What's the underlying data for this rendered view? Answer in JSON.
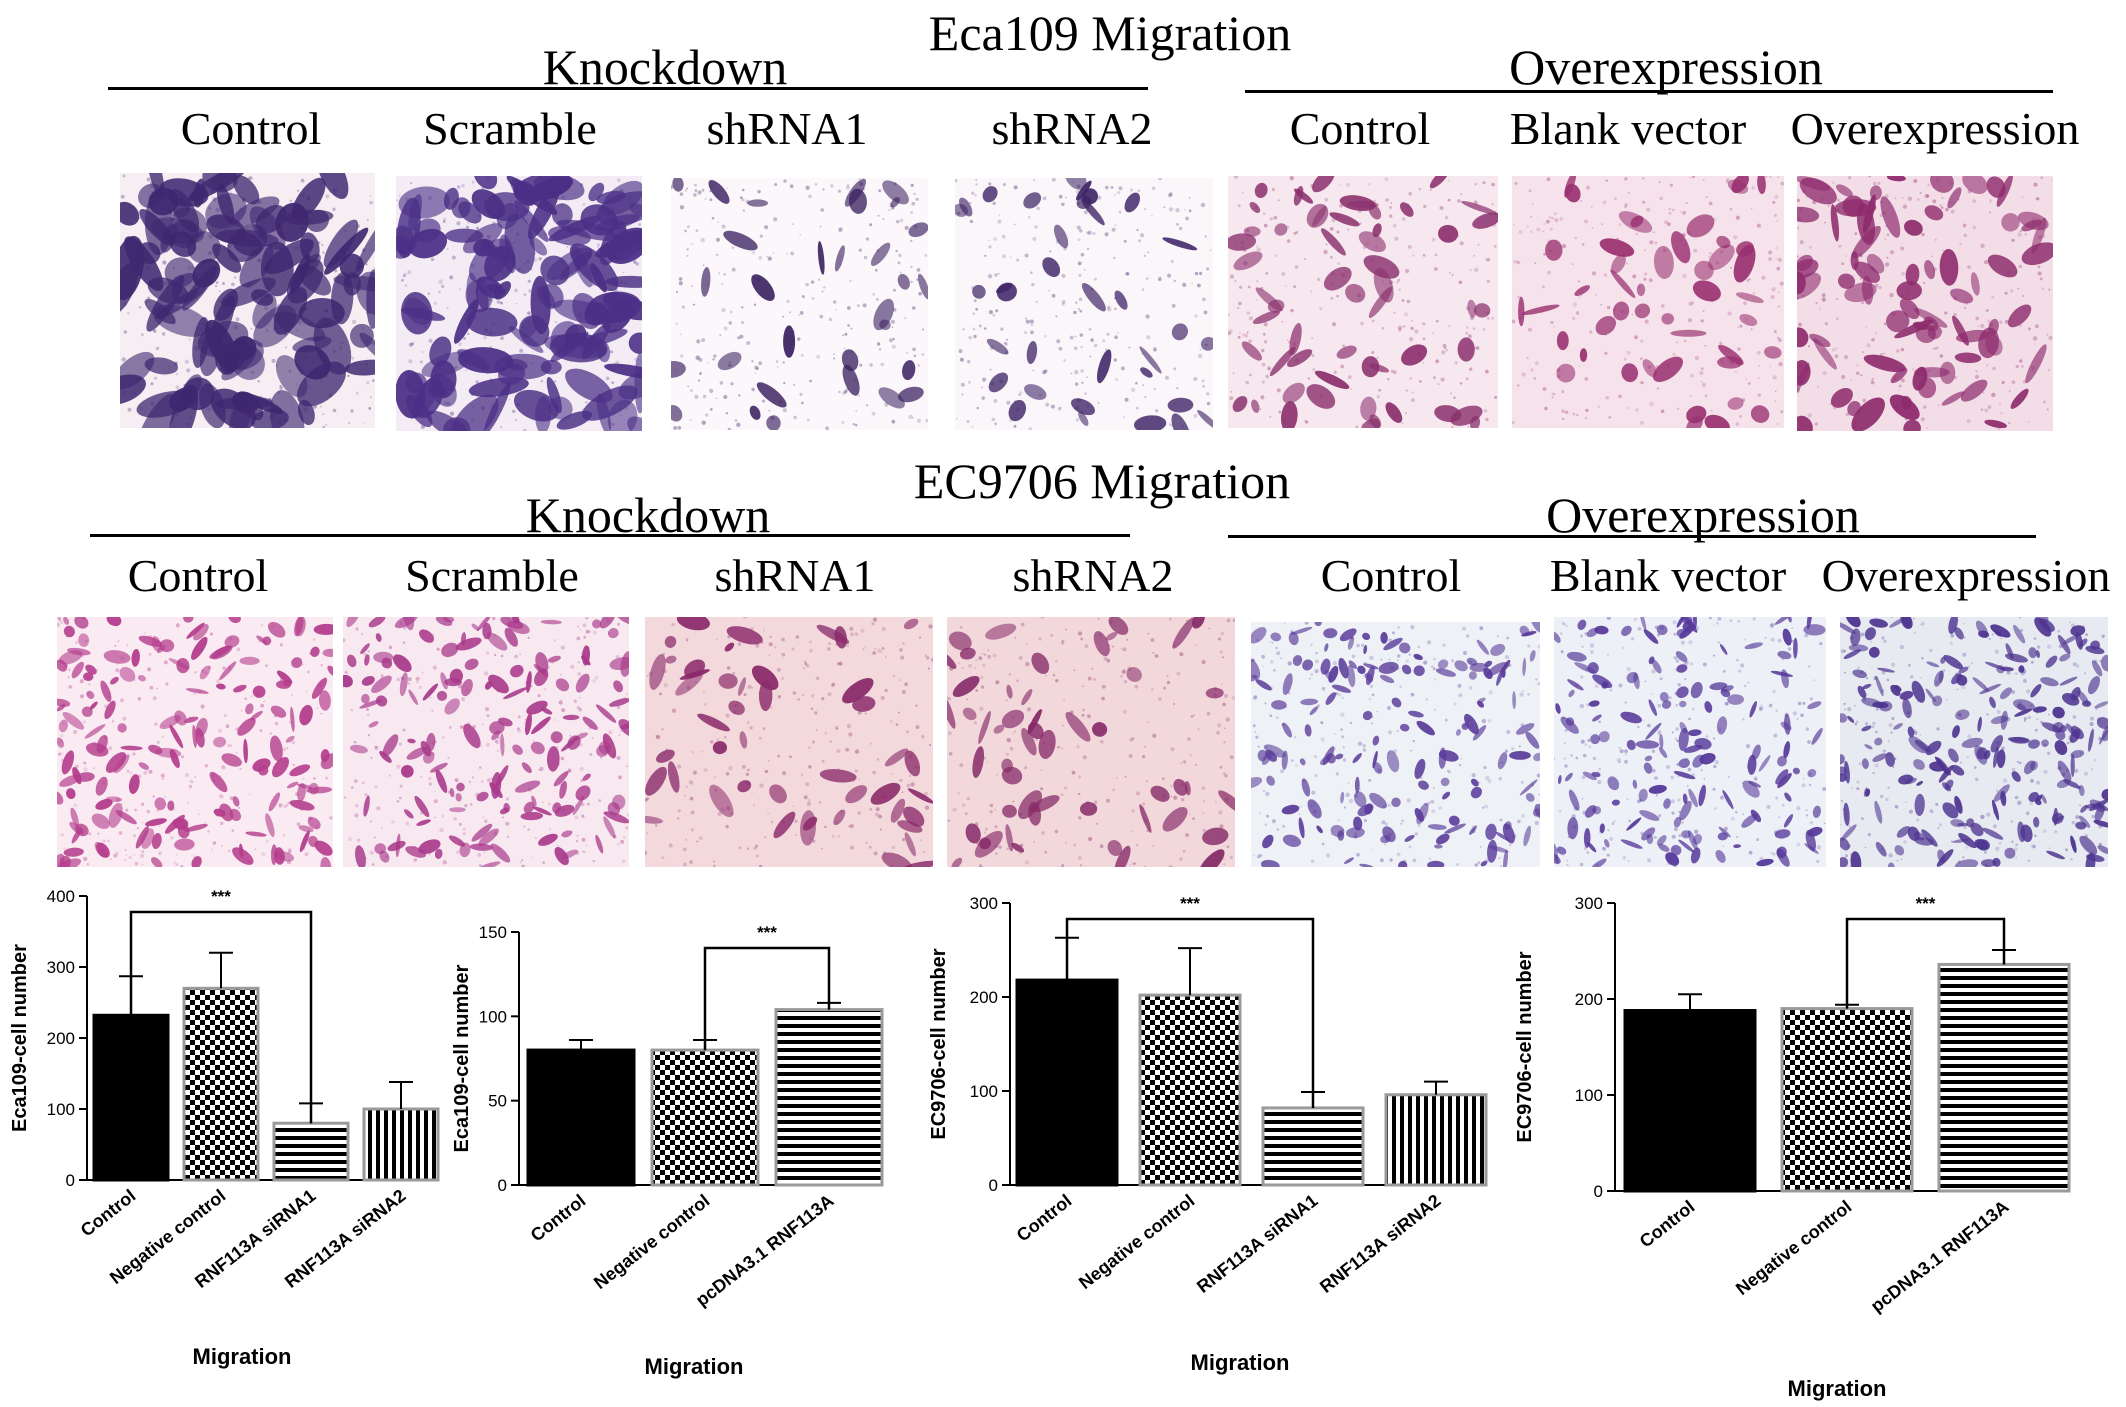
{
  "sections": [
    {
      "title": "Eca109 Migration",
      "groups": [
        {
          "label": "Knockdown",
          "conditions": [
            "Control",
            "Scramble",
            "shRNA1",
            "shRNA2"
          ]
        },
        {
          "label": "Overexpression",
          "conditions": [
            "Control",
            "Blank vector",
            "Overexpression"
          ]
        }
      ]
    },
    {
      "title": "EC9706 Migration",
      "groups": [
        {
          "label": "Knockdown",
          "conditions": [
            "Control",
            "Scramble",
            "shRNA1",
            "shRNA2"
          ]
        },
        {
          "label": "Overexpression",
          "conditions": [
            "Control",
            "Blank vector",
            "Overexpression"
          ]
        }
      ]
    }
  ],
  "colors": {
    "stain_purple": "#4a2a7a",
    "stain_magenta": "#a0307a",
    "stain_violet": "#5a3c9a",
    "background_pink": "#f5e4ec",
    "background_blue": "#eef0f7"
  },
  "chart_data": [
    {
      "type": "bar",
      "categories": [
        "Control",
        "Negative control",
        "RNF113A siRNA1",
        "RNF113A siRNA2"
      ],
      "values": [
        232,
        270,
        80,
        100
      ],
      "errors": [
        55,
        50,
        28,
        38
      ],
      "patterns": [
        "solid",
        "checker",
        "horizontal",
        "vertical"
      ],
      "ylabel": "Eca109-cell number",
      "xlabel": "Migration",
      "ylim": [
        0,
        400
      ],
      "yticks": [
        0,
        100,
        200,
        300,
        400
      ],
      "significance": {
        "from": 0,
        "to": 2,
        "label": "***"
      }
    },
    {
      "type": "bar",
      "categories": [
        "Control",
        "Negative control",
        "pcDNA3.1 RNF113A"
      ],
      "values": [
        80,
        80,
        104
      ],
      "errors": [
        6,
        6,
        4
      ],
      "patterns": [
        "solid",
        "checker",
        "horizontal"
      ],
      "ylabel": "Eca109-cell number",
      "xlabel": "Migration",
      "ylim": [
        0,
        150
      ],
      "yticks": [
        0,
        50,
        100,
        150
      ],
      "significance": {
        "from": 1,
        "to": 2,
        "label": "***"
      }
    },
    {
      "type": "bar",
      "categories": [
        "Control",
        "Negative control",
        "RNF113A siRNA1",
        "RNF113A siRNA2"
      ],
      "values": [
        218,
        202,
        82,
        96
      ],
      "errors": [
        45,
        50,
        17,
        14
      ],
      "patterns": [
        "solid",
        "checker",
        "horizontal",
        "vertical"
      ],
      "ylabel": "EC9706-cell number",
      "xlabel": "Migration",
      "ylim": [
        0,
        300
      ],
      "yticks": [
        0,
        100,
        200,
        300
      ],
      "significance": {
        "from": 0,
        "to": 2,
        "label": "***"
      }
    },
    {
      "type": "bar",
      "categories": [
        "Control",
        "Negative control",
        "pcDNA3.1 RNF113A"
      ],
      "values": [
        188,
        190,
        236
      ],
      "errors": [
        17,
        4,
        15
      ],
      "patterns": [
        "solid",
        "checker",
        "horizontal"
      ],
      "ylabel": "EC9706-cell number",
      "xlabel": "Migration",
      "ylim": [
        0,
        300
      ],
      "yticks": [
        0,
        100,
        200,
        300
      ],
      "significance": {
        "from": 1,
        "to": 2,
        "label": "***"
      }
    }
  ]
}
